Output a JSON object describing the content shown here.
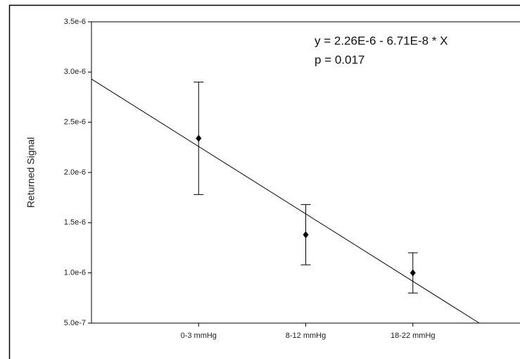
{
  "chart_data": {
    "type": "scatter",
    "y_label": "Returned Signal",
    "annotations": [
      "y = 2.26E-6 - 6.71E-8 * X",
      "p = 0.017"
    ],
    "x": [
      0,
      10,
      20
    ],
    "values": [
      2.34e-06,
      1.38e-06,
      1e-06
    ],
    "errors": [
      5.6e-07,
      3e-07,
      2e-07
    ],
    "color": "#000000",
    "fit_x": [
      -10,
      26.2
    ],
    "fit_y": [
      2.93e-06,
      5e-07
    ],
    "xlim": [
      -10,
      30
    ],
    "xticks": [
      {
        "value": 0,
        "label": "0-3 mmHg"
      },
      {
        "value": 10,
        "label": "8-12 mmHg"
      },
      {
        "value": 20,
        "label": "18-22 mmHg"
      }
    ],
    "ylim": [
      5e-07,
      3.5e-06
    ],
    "yticks": [
      {
        "value": 5e-07,
        "label": "5.0e-7"
      },
      {
        "value": 1e-06,
        "label": "1.0e-6"
      },
      {
        "value": 1.5e-06,
        "label": "1.5e-6"
      },
      {
        "value": 2e-06,
        "label": "2.0e-6"
      },
      {
        "value": 2.5e-06,
        "label": "2.5e-6"
      },
      {
        "value": 3e-06,
        "label": "3.0e-6"
      },
      {
        "value": 3.5e-06,
        "label": "3.5e-6"
      }
    ],
    "grid": false
  }
}
